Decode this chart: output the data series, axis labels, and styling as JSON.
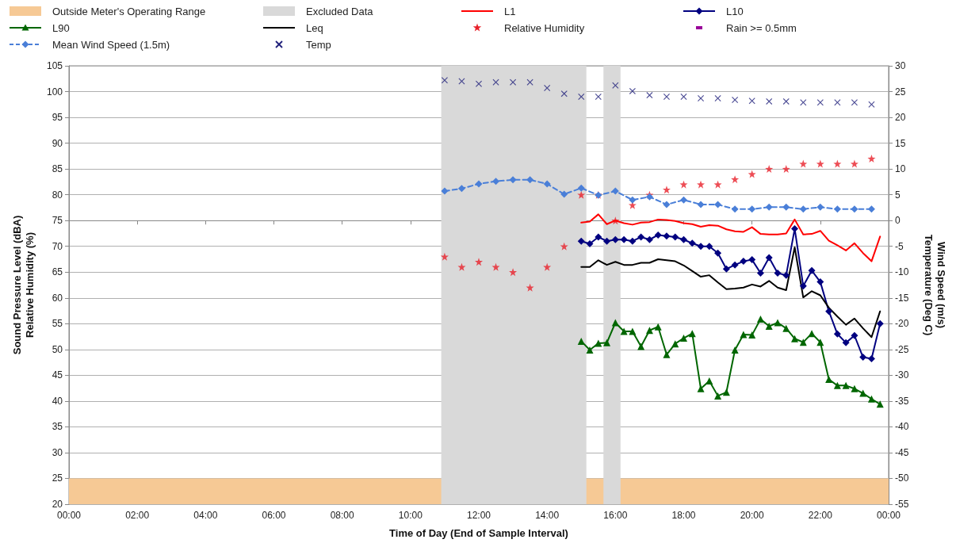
{
  "chart_data": {
    "type": "line",
    "xlabel": "Time of Day (End of Sample Interval)",
    "ylabel": "Sound Pressure Level (dBA)\nRelative Humidity (%)",
    "y2label": "Wind Speed (m/s)\nTemperature (Deg C)",
    "xlim": [
      0,
      24
    ],
    "xticks": [
      {
        "value": 0,
        "label": "00:00"
      },
      {
        "value": 2,
        "label": "02:00"
      },
      {
        "value": 4,
        "label": "04:00"
      },
      {
        "value": 6,
        "label": "06:00"
      },
      {
        "value": 8,
        "label": "08:00"
      },
      {
        "value": 10,
        "label": "10:00"
      },
      {
        "value": 12,
        "label": "12:00"
      },
      {
        "value": 14,
        "label": "14:00"
      },
      {
        "value": 16,
        "label": "16:00"
      },
      {
        "value": 18,
        "label": "18:00"
      },
      {
        "value": 20,
        "label": "20:00"
      },
      {
        "value": 22,
        "label": "22:00"
      },
      {
        "value": 24,
        "label": "00:00"
      }
    ],
    "ylim": [
      20,
      105
    ],
    "yticks": [
      20,
      25,
      30,
      35,
      40,
      45,
      50,
      55,
      60,
      65,
      70,
      75,
      80,
      85,
      90,
      95,
      100,
      105
    ],
    "y2lim": [
      -55,
      30
    ],
    "y2ticks": [
      -55,
      -50,
      -45,
      -40,
      -35,
      -30,
      -25,
      -20,
      -15,
      -10,
      -5,
      0,
      5,
      10,
      15,
      20,
      25,
      30
    ],
    "grid": "y",
    "legend": "top",
    "bands": [
      {
        "axis": "y",
        "from": 20,
        "to": 25,
        "label": "Outside Meter's Operating Range",
        "color": "#f6c995"
      },
      {
        "axis": "x",
        "from": 10.9,
        "to": 15.15,
        "label": "Excluded Data",
        "color": "#d9d9d9"
      },
      {
        "axis": "x",
        "from": 15.65,
        "to": 16.15,
        "color": "#d9d9d9"
      }
    ],
    "series": [
      {
        "name": "L1",
        "color": "#ff0000",
        "marker": "none",
        "line_style": "solid",
        "x": [
          15,
          15.25,
          15.5,
          15.75,
          16,
          16.25,
          16.5,
          16.75,
          17,
          17.25,
          17.5,
          17.75,
          18,
          18.25,
          18.5,
          18.75,
          19,
          19.25,
          19.5,
          19.75,
          20,
          20.25,
          20.5,
          20.75,
          21,
          21.25,
          21.5,
          21.75,
          22,
          22.25,
          22.5,
          22.75,
          23,
          23.25,
          23.5,
          23.75
        ],
        "values": [
          74.6,
          74.8,
          76.2,
          74.3,
          75.0,
          74.5,
          74.2,
          74.6,
          74.7,
          75.2,
          75.1,
          74.9,
          74.5,
          74.3,
          73.8,
          74.1,
          74.0,
          73.3,
          72.9,
          72.8,
          73.7,
          72.4,
          72.3,
          72.3,
          72.5,
          75.2,
          72.3,
          72.4,
          73.0,
          71.1,
          70.2,
          69.2,
          70.6,
          68.7,
          67.1,
          71.9
        ]
      },
      {
        "name": "L10",
        "color": "#000080",
        "marker": "diamond",
        "line_style": "solid",
        "x": [
          15,
          15.25,
          15.5,
          15.75,
          16,
          16.25,
          16.5,
          16.75,
          17,
          17.25,
          17.5,
          17.75,
          18,
          18.25,
          18.5,
          18.75,
          19,
          19.25,
          19.5,
          19.75,
          20,
          20.25,
          20.5,
          20.75,
          21,
          21.25,
          21.5,
          21.75,
          22,
          22.25,
          22.5,
          22.75,
          23,
          23.25,
          23.5,
          23.75
        ],
        "values": [
          71.0,
          70.5,
          71.8,
          71.0,
          71.3,
          71.3,
          71.0,
          71.8,
          71.3,
          72.2,
          72.0,
          71.8,
          71.3,
          70.6,
          70.0,
          70.0,
          68.7,
          65.6,
          66.4,
          67.1,
          67.4,
          64.8,
          67.8,
          64.8,
          64.4,
          73.4,
          62.3,
          65.3,
          63.1,
          57.4,
          53.0,
          51.3,
          52.7,
          48.5,
          48.2,
          55.0
        ]
      },
      {
        "name": "L90",
        "color": "#006600",
        "marker": "triangle",
        "line_style": "solid",
        "x": [
          15,
          15.25,
          15.5,
          15.75,
          16,
          16.25,
          16.5,
          16.75,
          17,
          17.25,
          17.5,
          17.75,
          18,
          18.25,
          18.5,
          18.75,
          19,
          19.25,
          19.5,
          19.75,
          20,
          20.25,
          20.5,
          20.75,
          21,
          21.25,
          21.5,
          21.75,
          22,
          22.25,
          22.5,
          22.75,
          23,
          23.25,
          23.5,
          23.75
        ],
        "values": [
          51.6,
          49.9,
          51.2,
          51.3,
          55.2,
          53.5,
          53.5,
          50.6,
          53.7,
          54.4,
          49.0,
          51.1,
          52.2,
          53.1,
          42.4,
          43.9,
          41.0,
          41.7,
          49.9,
          52.9,
          52.8,
          55.9,
          54.5,
          55.2,
          54.1,
          52.1,
          51.4,
          53.1,
          51.4,
          44.2,
          43.0,
          43.0,
          42.4,
          41.5,
          40.4,
          39.4
        ]
      },
      {
        "name": "Leq",
        "color": "#000000",
        "marker": "none",
        "line_style": "solid",
        "x": [
          15,
          15.25,
          15.5,
          15.75,
          16,
          16.25,
          16.5,
          16.75,
          17,
          17.25,
          17.5,
          17.75,
          18,
          18.25,
          18.5,
          18.75,
          19,
          19.25,
          19.5,
          19.75,
          20,
          20.25,
          20.5,
          20.75,
          21,
          21.25,
          21.5,
          21.75,
          22,
          22.25,
          22.5,
          22.75,
          23,
          23.25,
          23.5,
          23.75
        ],
        "values": [
          66.0,
          66.0,
          67.3,
          66.4,
          67.0,
          66.4,
          66.4,
          66.8,
          66.8,
          67.5,
          67.3,
          67.1,
          66.3,
          65.2,
          64.1,
          64.4,
          63.0,
          61.7,
          61.8,
          62.0,
          62.6,
          62.2,
          63.3,
          62.0,
          61.5,
          69.8,
          60.1,
          61.3,
          60.5,
          58.1,
          56.4,
          54.8,
          56.0,
          54.1,
          52.4,
          57.4
        ]
      },
      {
        "name": "Relative Humidity",
        "type": "scatter",
        "color": "#e8202a",
        "marker": "star",
        "x": [
          11,
          11.5,
          12,
          12.5,
          13,
          13.5,
          14,
          14.5,
          15,
          15.5,
          16,
          16.5,
          17,
          17.5,
          18,
          18.5,
          19,
          19.5,
          20,
          20.5,
          21,
          21.5,
          22,
          22.5,
          23,
          23.5
        ],
        "values": [
          68,
          66,
          67,
          66,
          65,
          62,
          66,
          70,
          80,
          80,
          75,
          78,
          80,
          81,
          82,
          82,
          82,
          83,
          84,
          85,
          85,
          86,
          86,
          86,
          86,
          87
        ]
      },
      {
        "name": "Rain >= 0.5mm",
        "type": "scatter",
        "color": "#990099",
        "marker": "none",
        "axis": "y2"
      },
      {
        "name": "Mean Wind Speed (1.5m)",
        "color": "#4a7fd8",
        "marker": "diamond",
        "line_style": "dashed",
        "axis": "y2",
        "x": [
          11,
          11.5,
          12,
          12.5,
          13,
          13.5,
          14,
          14.5,
          15,
          15.5,
          16,
          16.5,
          17,
          17.5,
          18,
          18.5,
          19,
          19.5,
          20,
          20.5,
          21,
          21.5,
          22,
          22.5,
          23,
          23.5
        ],
        "values": [
          5.7,
          6.2,
          7.1,
          7.6,
          7.9,
          7.9,
          7.1,
          5.1,
          6.3,
          4.9,
          5.7,
          4.0,
          4.6,
          3.1,
          4.0,
          3.1,
          3.1,
          2.2,
          2.2,
          2.6,
          2.6,
          2.2,
          2.6,
          2.2,
          2.2,
          2.2
        ]
      },
      {
        "name": "Temp",
        "type": "scatter",
        "color": "#1f1f7a",
        "marker": "cross",
        "axis": "y2",
        "x": [
          11,
          11.5,
          12,
          12.5,
          13,
          13.5,
          14,
          14.5,
          15,
          15.5,
          16,
          16.5,
          17,
          17.5,
          18,
          18.5,
          19,
          19.5,
          20,
          20.5,
          21,
          21.5,
          22,
          22.5,
          23,
          23.5
        ],
        "values": [
          27.2,
          27.0,
          26.5,
          26.8,
          26.8,
          26.8,
          25.7,
          24.6,
          24.0,
          24.0,
          26.2,
          25.1,
          24.3,
          24.0,
          24.0,
          23.7,
          23.7,
          23.4,
          23.2,
          23.1,
          23.1,
          22.9,
          22.9,
          22.9,
          22.9,
          22.5
        ]
      }
    ]
  }
}
